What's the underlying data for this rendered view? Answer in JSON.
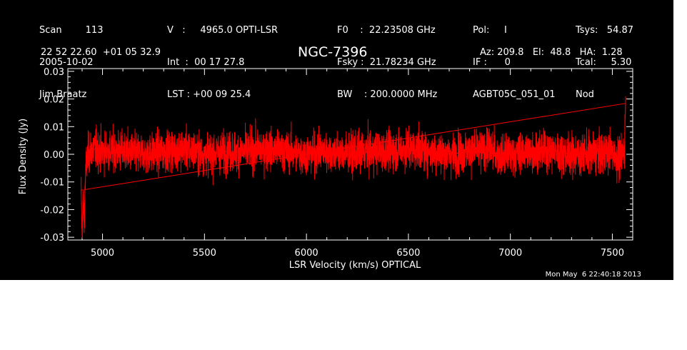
{
  "header": {
    "col1": [
      "Scan        113",
      "2005-10-02",
      "Jim Braatz"
    ],
    "col2": [
      "V   :     4965.0 OPTI-LSR",
      "Int  :  00 17 27.8",
      "LST : +00 09 25.4"
    ],
    "col3": [
      "F0    :  22.23508 GHz",
      "Fsky :  21.78234 GHz",
      "BW    : 200.0000 MHz"
    ],
    "col4": [
      "Pol:     I",
      "IF :      0",
      "AGBT05C_051_01"
    ],
    "col5": [
      "Tsys:   54.87",
      "Tcal:     5.30",
      "Nod"
    ],
    "coords": "22 52 22.60  +01 05 32.9",
    "source": "NGC-7396",
    "azel": "Az: 209.8   El:  48.8   HA:  1.28",
    "timestamp": "Mon May  6 22:40:18 2013"
  },
  "colors": {
    "background": "#000000",
    "foreground": "#ffffff",
    "series": "#ff0000"
  },
  "chart_data": {
    "type": "line",
    "title": "NGC-7396",
    "xlabel": "LSR Velocity (km/s) OPTICAL",
    "ylabel": "Flux Density (Jy)",
    "xlim": [
      4830,
      7600
    ],
    "ylim": [
      -0.031,
      0.031
    ],
    "xticks": [
      5000,
      5500,
      6000,
      6500,
      7000,
      7500
    ],
    "xtick_labels": [
      "5000",
      "5500",
      "6000",
      "6500",
      "7000",
      "7500"
    ],
    "yticks": [
      -0.03,
      -0.02,
      -0.01,
      0.0,
      0.01,
      0.02,
      0.03
    ],
    "ytick_labels": [
      "-0.03",
      "-0.02",
      "-0.01",
      "0.00",
      "0.01",
      "0.02",
      "0.03"
    ],
    "grid": false,
    "series": [
      {
        "x": [
          4895,
          4900,
          4905,
          4910,
          4915,
          4920,
          4930,
          4950,
          5000,
          5100,
          5200,
          5300,
          5400,
          5500,
          5600,
          5700,
          5800,
          5900,
          6000,
          6100,
          6200,
          6300,
          6400,
          6500,
          6600,
          6700,
          6800,
          6900,
          6950,
          7000,
          7100,
          7200,
          7300,
          7400,
          7500,
          7540,
          7560,
          7565
        ],
        "y": [
          -0.013,
          -0.029,
          -0.018,
          -0.025,
          -0.01,
          -0.004,
          0.0,
          0.002,
          0.001,
          0.001,
          0.0,
          0.001,
          0.002,
          0.0,
          0.001,
          0.001,
          0.002,
          0.001,
          0.0,
          0.001,
          0.0,
          0.001,
          0.001,
          0.002,
          0.001,
          0.0,
          0.001,
          0.002,
          -0.001,
          0.0,
          0.001,
          0.001,
          0.0,
          0.0,
          0.001,
          -0.002,
          0.003,
          0.021
        ]
      }
    ]
  }
}
